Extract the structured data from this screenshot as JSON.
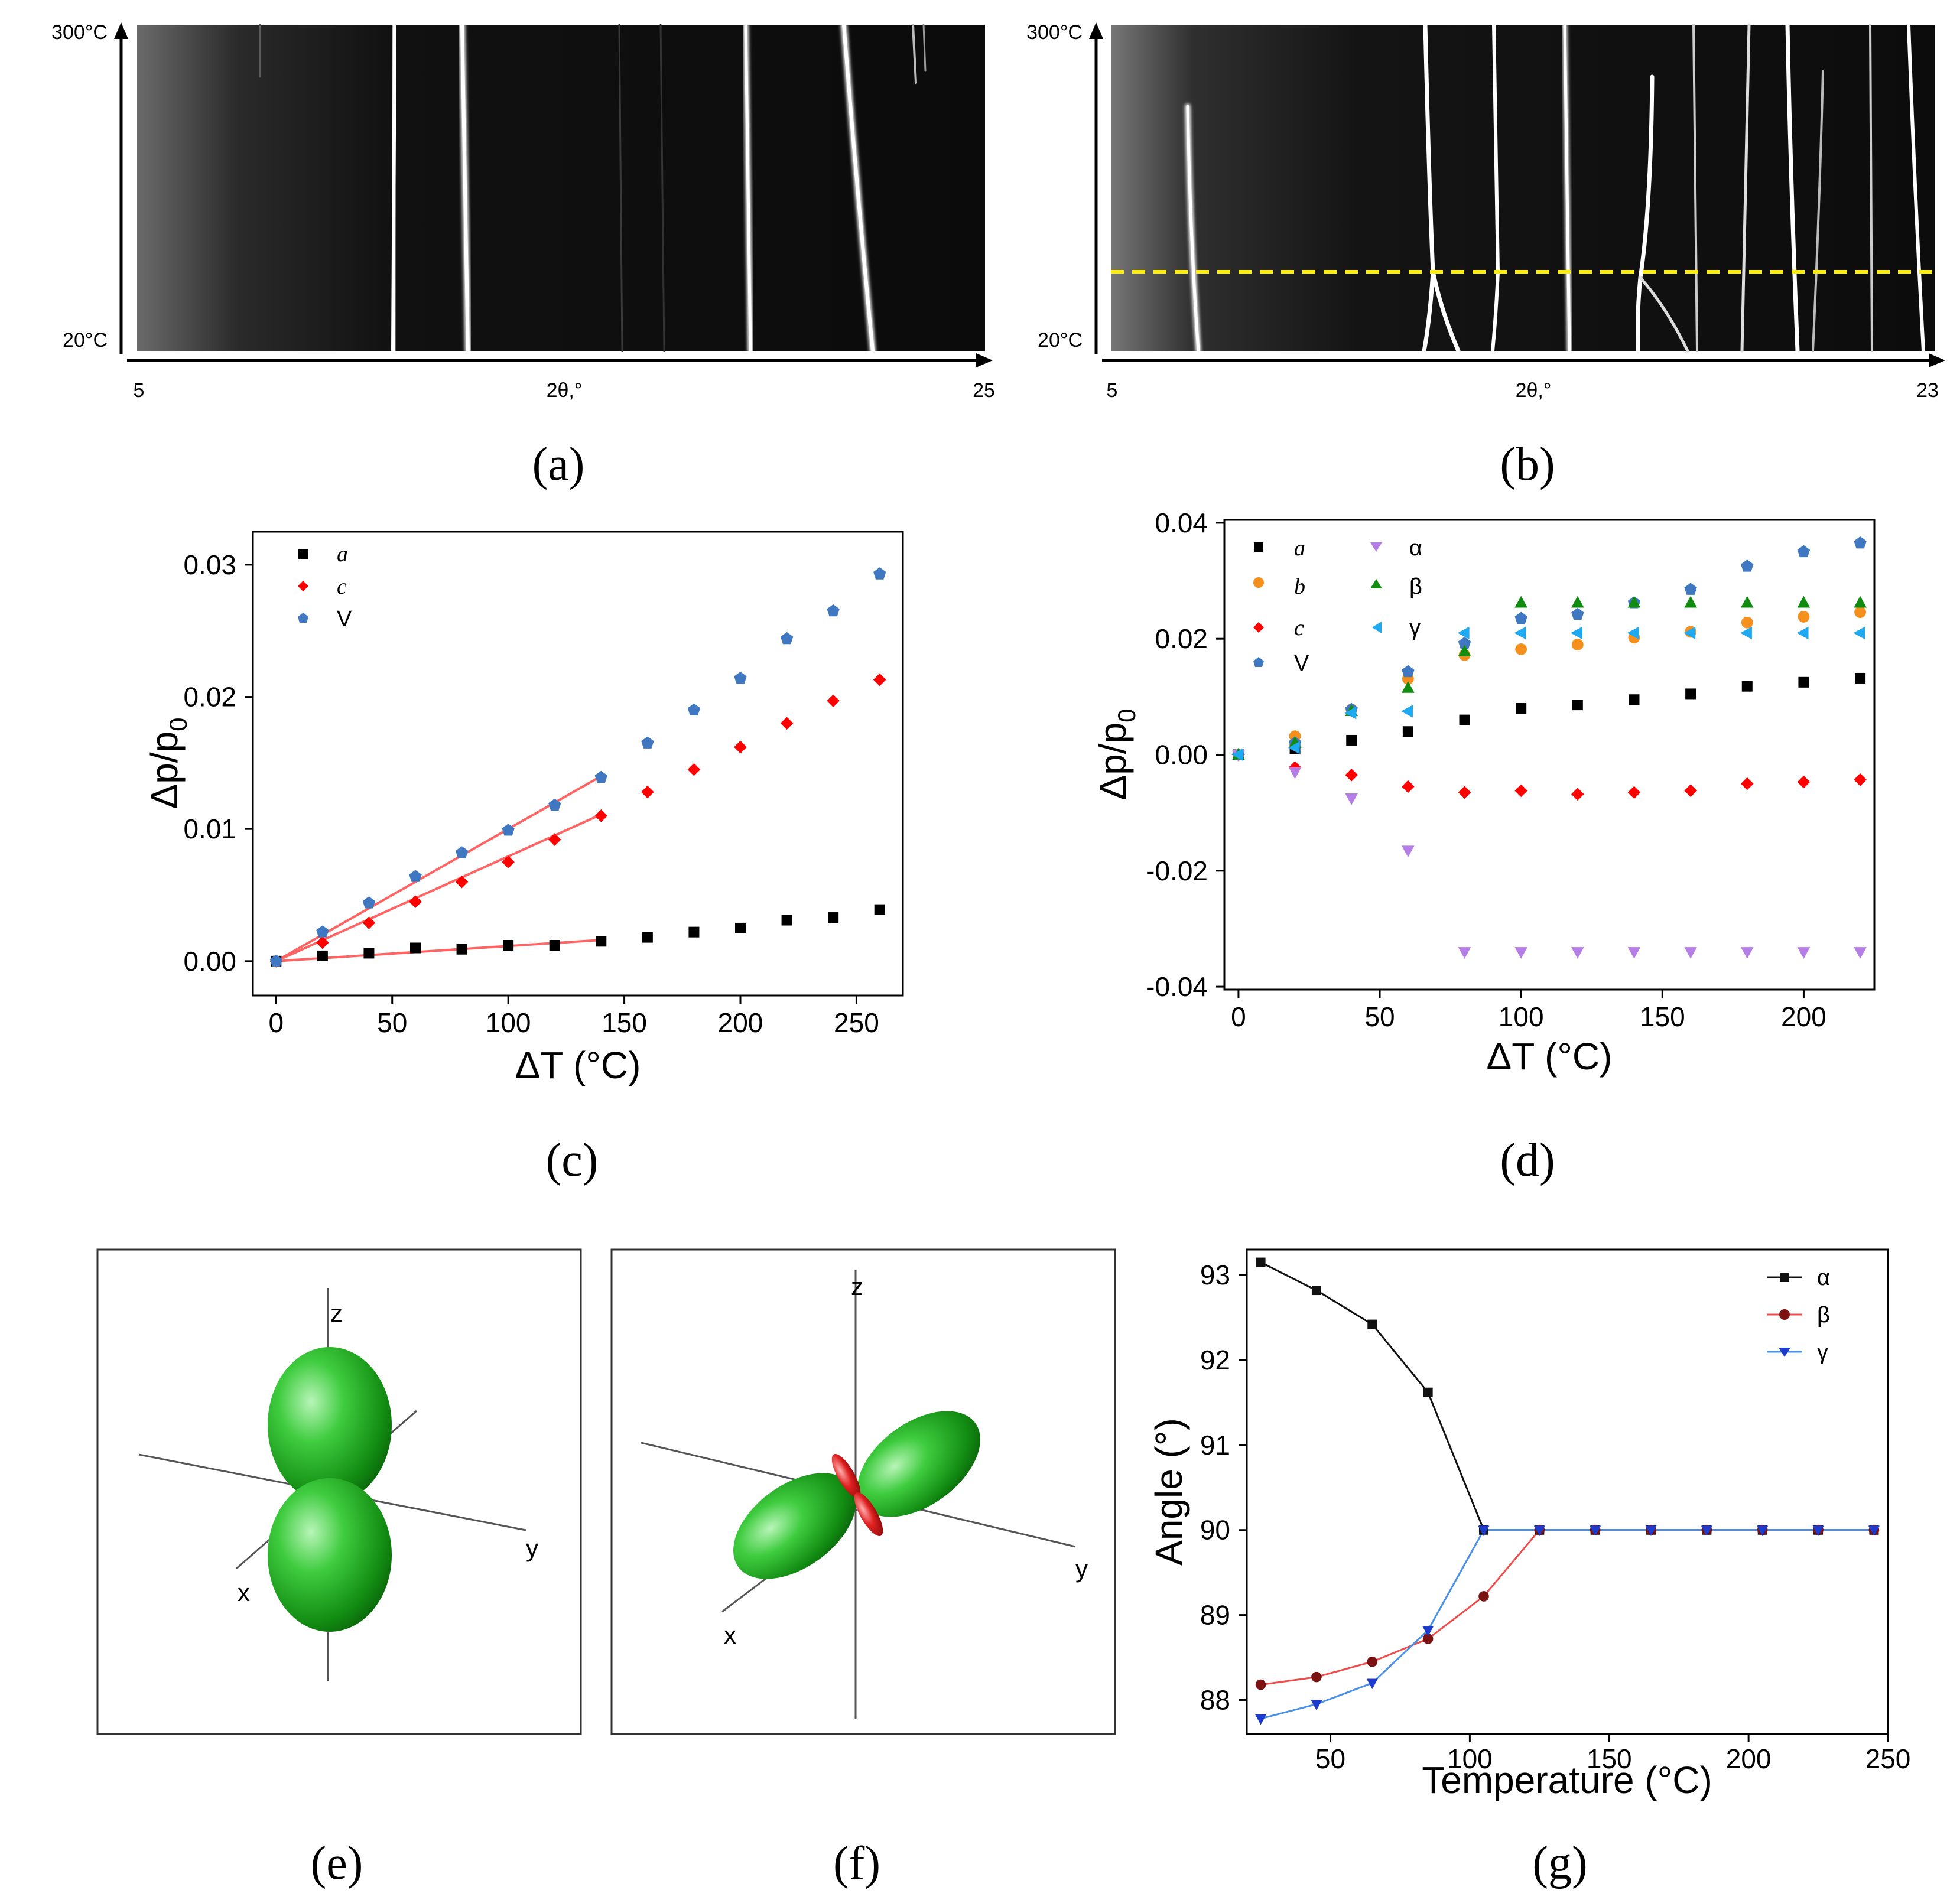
{
  "panels": {
    "a": {
      "caption": "(a)",
      "y_top": "300°C",
      "y_bottom": "20°C",
      "x_min": "5",
      "x_max": "25",
      "x_label": "2θ,°"
    },
    "b": {
      "caption": "(b)",
      "y_top": "300°C",
      "y_bottom": "20°C",
      "x_min": "5",
      "x_max": "23",
      "x_label": "2θ,°"
    },
    "e": {
      "caption": "(e)",
      "axis_x": "x",
      "axis_y": "y",
      "axis_z": "z"
    },
    "f": {
      "caption": "(f)",
      "axis_x": "x",
      "axis_y": "y",
      "axis_z": "z"
    }
  },
  "colors": {
    "a": "#000000",
    "c": "#ff0000",
    "V": "#3f78c0",
    "b": "#f5901e",
    "alpha": "#b57ee6",
    "beta": "#118c11",
    "gamma": "#1ea9f0",
    "fit": "#ff6464",
    "dash": "#ffee00",
    "g_alpha": "#111111",
    "g_beta": "#7a1212",
    "g_gamma": "#1d3bcc",
    "g_beta_line": "#f04c4c",
    "g_gamma_line": "#4a90e6"
  },
  "chart_data": [
    {
      "id": "c",
      "caption": "(c)",
      "type": "scatter",
      "xlabel": "ΔT (°C)",
      "ylabel": "Δp/p",
      "ylabel_sub": "0",
      "xlim": [
        -10,
        270
      ],
      "ylim": [
        -0.0026,
        0.0325
      ],
      "xticks": [
        0,
        50,
        100,
        150,
        200,
        250
      ],
      "xtick_labels": [
        "0",
        "50",
        "100",
        "150",
        "200",
        "250"
      ],
      "yticks": [
        0,
        0.01,
        0.02,
        0.03
      ],
      "ytick_labels": [
        "0.00",
        "0.01",
        "0.02",
        "0.03"
      ],
      "series": [
        {
          "name": "a",
          "key": "a",
          "marker": "square",
          "x": [
            0,
            20,
            40,
            60,
            80,
            100,
            120,
            140,
            160,
            180,
            200,
            220,
            240,
            260
          ],
          "y": [
            0,
            0.0004,
            0.0006,
            0.001,
            0.0009,
            0.0012,
            0.0012,
            0.0015,
            0.0018,
            0.0022,
            0.0025,
            0.0031,
            0.0033,
            0.0039
          ]
        },
        {
          "name": "c",
          "key": "c",
          "marker": "diamond",
          "x": [
            0,
            20,
            40,
            60,
            80,
            100,
            120,
            140,
            160,
            180,
            200,
            220,
            240,
            260
          ],
          "y": [
            0,
            0.0014,
            0.0029,
            0.0045,
            0.006,
            0.0075,
            0.0092,
            0.011,
            0.0128,
            0.0145,
            0.0162,
            0.018,
            0.0197,
            0.0213
          ]
        },
        {
          "name": "V",
          "key": "V",
          "marker": "pentagon",
          "x": [
            0,
            20,
            40,
            60,
            80,
            100,
            120,
            140,
            160,
            180,
            200,
            220,
            240,
            260
          ],
          "y": [
            0,
            0.0022,
            0.0044,
            0.0064,
            0.0082,
            0.0099,
            0.0118,
            0.0139,
            0.0165,
            0.019,
            0.0214,
            0.0244,
            0.0265,
            0.0293
          ]
        }
      ],
      "fits": [
        {
          "x": [
            0,
            140
          ],
          "y": [
            0,
            0.0016
          ]
        },
        {
          "x": [
            0,
            140
          ],
          "y": [
            0,
            0.0111
          ]
        },
        {
          "x": [
            0,
            140
          ],
          "y": [
            0,
            0.014
          ]
        }
      ]
    },
    {
      "id": "d",
      "caption": "(d)",
      "type": "scatter",
      "xlabel": "ΔT (°C)",
      "ylabel": "Δp/p",
      "ylabel_sub": "0",
      "xlim": [
        -5,
        225
      ],
      "ylim": [
        -0.0405,
        0.0405
      ],
      "xticks": [
        0,
        50,
        100,
        150,
        200
      ],
      "xtick_labels": [
        "0",
        "50",
        "100",
        "150",
        "200"
      ],
      "yticks": [
        -0.04,
        -0.02,
        0,
        0.02,
        0.04
      ],
      "ytick_labels": [
        "-0.04",
        "-0.02",
        "0.00",
        "0.02",
        "0.04"
      ],
      "series": [
        {
          "name": "a",
          "key": "a",
          "marker": "square",
          "x": [
            0,
            20,
            40,
            60,
            80,
            100,
            120,
            140,
            160,
            180,
            200,
            220
          ],
          "y": [
            0,
            0.001,
            0.0025,
            0.004,
            0.006,
            0.008,
            0.0086,
            0.0095,
            0.0105,
            0.0118,
            0.0125,
            0.0132
          ]
        },
        {
          "name": "b",
          "key": "b",
          "marker": "circle",
          "x": [
            0,
            20,
            40,
            60,
            80,
            100,
            120,
            140,
            160,
            180,
            200,
            220
          ],
          "y": [
            0,
            0.0032,
            0.0078,
            0.0131,
            0.0172,
            0.0182,
            0.019,
            0.0202,
            0.0212,
            0.0228,
            0.0238,
            0.0246
          ]
        },
        {
          "name": "c",
          "key": "c",
          "marker": "diamond",
          "x": [
            0,
            20,
            40,
            60,
            80,
            100,
            120,
            140,
            160,
            180,
            200,
            220
          ],
          "y": [
            0,
            -0.0022,
            -0.0035,
            -0.0055,
            -0.0065,
            -0.0062,
            -0.0068,
            -0.0065,
            -0.0062,
            -0.005,
            -0.0047,
            -0.0043
          ]
        },
        {
          "name": "V",
          "key": "V",
          "marker": "pentagon",
          "x": [
            0,
            20,
            40,
            60,
            80,
            100,
            120,
            140,
            160,
            180,
            200,
            220
          ],
          "y": [
            0,
            0.002,
            0.0078,
            0.0143,
            0.0192,
            0.0235,
            0.0242,
            0.0262,
            0.0285,
            0.0325,
            0.035,
            0.0365
          ]
        },
        {
          "name": "α",
          "key": "alpha",
          "marker": "tri-down",
          "x": [
            0,
            20,
            40,
            60,
            80,
            100,
            120,
            140,
            160,
            180,
            200,
            220
          ],
          "y": [
            0,
            -0.003,
            -0.0075,
            -0.0165,
            -0.034,
            -0.034,
            -0.034,
            -0.034,
            -0.034,
            -0.034,
            -0.034,
            -0.034
          ]
        },
        {
          "name": "β",
          "key": "beta",
          "marker": "tri-up",
          "x": [
            0,
            20,
            40,
            60,
            80,
            100,
            120,
            140,
            160,
            180,
            200,
            220
          ],
          "y": [
            0,
            0.002,
            0.0075,
            0.0115,
            0.0178,
            0.0262,
            0.0262,
            0.0262,
            0.0262,
            0.0262,
            0.0262,
            0.0262
          ]
        },
        {
          "name": "γ",
          "key": "gamma",
          "marker": "tri-left",
          "x": [
            0,
            20,
            40,
            60,
            80,
            100,
            120,
            140,
            160,
            180,
            200,
            220
          ],
          "y": [
            0,
            0.0012,
            0.0072,
            0.0075,
            0.021,
            0.021,
            0.021,
            0.021,
            0.021,
            0.021,
            0.021,
            0.021
          ]
        }
      ]
    },
    {
      "id": "g",
      "caption": "(g)",
      "type": "line",
      "xlabel": "Temperature (°C)",
      "ylabel": "Angle (°)",
      "xlim": [
        20,
        250
      ],
      "ylim": [
        87.6,
        93.3
      ],
      "xticks": [
        50,
        100,
        150,
        200,
        250
      ],
      "xtick_labels": [
        "50",
        "100",
        "150",
        "200",
        "250"
      ],
      "yticks": [
        88,
        89,
        90,
        91,
        92,
        93
      ],
      "ytick_labels": [
        "88",
        "89",
        "90",
        "91",
        "92",
        "93"
      ],
      "series": [
        {
          "name": "α",
          "key": "g_alpha",
          "line": "g_alpha",
          "marker": "square",
          "x": [
            25,
            45,
            65,
            85,
            105,
            125,
            145,
            165,
            185,
            205,
            225,
            245
          ],
          "y": [
            93.15,
            92.82,
            92.42,
            91.62,
            90,
            90,
            90,
            90,
            90,
            90,
            90,
            90
          ]
        },
        {
          "name": "β",
          "key": "g_beta",
          "line": "g_beta_line",
          "marker": "circle",
          "x": [
            25,
            45,
            65,
            85,
            105,
            125,
            145,
            165,
            185,
            205,
            225,
            245
          ],
          "y": [
            88.18,
            88.27,
            88.45,
            88.72,
            89.22,
            90,
            90,
            90,
            90,
            90,
            90,
            90
          ]
        },
        {
          "name": "γ",
          "key": "g_gamma",
          "line": "g_gamma_line",
          "marker": "tri-down",
          "x": [
            25,
            45,
            65,
            85,
            105,
            125,
            145,
            165,
            185,
            205,
            225,
            245
          ],
          "y": [
            87.78,
            87.95,
            88.2,
            88.82,
            90,
            90,
            90,
            90,
            90,
            90,
            90,
            90
          ]
        }
      ]
    }
  ]
}
